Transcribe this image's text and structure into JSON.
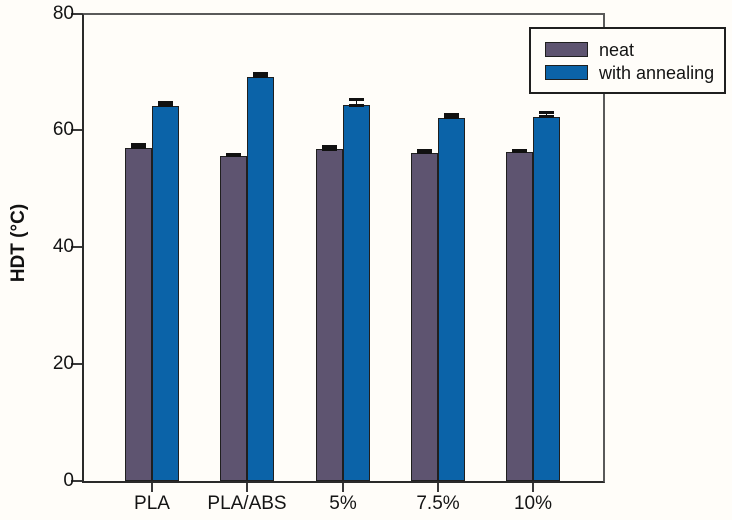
{
  "chart_data": {
    "type": "bar",
    "title": "",
    "xlabel": "",
    "ylabel": "HDT (°C)",
    "ylim": [
      0,
      80
    ],
    "yticks": [
      0,
      20,
      40,
      60,
      80
    ],
    "categories": [
      "PLA",
      "PLA/ABS",
      "5%",
      "7.5%",
      "10%"
    ],
    "series": [
      {
        "name": "neat",
        "color": "#5e5470",
        "values": [
          57.0,
          55.7,
          56.8,
          56.2,
          56.3
        ],
        "errors": [
          0.6,
          0.25,
          0.5,
          0.35,
          0.3
        ]
      },
      {
        "name": "with annealing",
        "color": "#0b63a8",
        "values": [
          64.2,
          69.2,
          64.3,
          62.2,
          62.3
        ],
        "errors": [
          0.5,
          0.5,
          0.9,
          0.5,
          0.7
        ]
      }
    ],
    "legend_position": "top-right",
    "grid": false,
    "bar_outline_color": "#1f1f1f",
    "error_bar_color": "#111111",
    "frame_color": "#5a5a5a",
    "background_color": "#fffdf9"
  }
}
